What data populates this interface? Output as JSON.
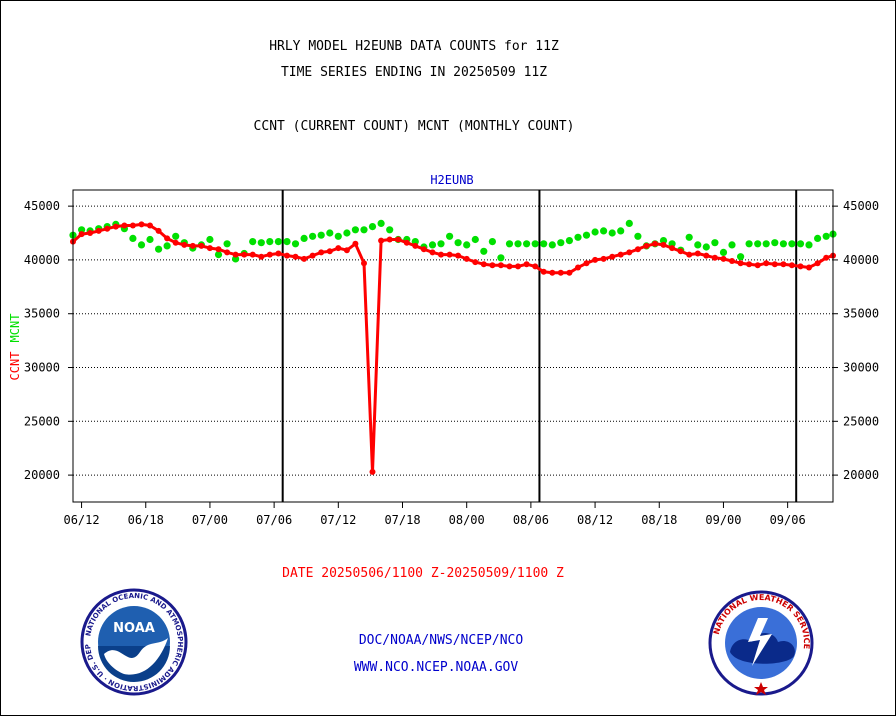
{
  "header": {
    "title_line1": "HRLY MODEL H2EUNB DATA COUNTS for 11Z",
    "title_line2": "TIME SERIES ENDING IN 20250509 11Z",
    "subtitle": "CCNT (CURRENT COUNT) MCNT (MONTHLY COUNT)"
  },
  "footer": {
    "date_range": "DATE 20250506/1100 Z-20250509/1100 Z",
    "org_line": "DOC/NOAA/NWS/NCEP/NCO",
    "url_line": "WWW.NCO.NCEP.NOAA.GOV"
  },
  "logos": {
    "noaa_text": "NOAA",
    "noaa_ring_text": "NATIONAL OCEANIC AND ATMOSPHERIC ADMINISTRATION · U.S. DEPARTMENT OF COMMERCE",
    "nws_ring_text": "NATIONAL WEATHER SERVICE"
  },
  "colors": {
    "ccnt": "#ff0000",
    "mcnt": "#00e000",
    "axis": "#000000",
    "footer_date": "#ff0000",
    "footer_links": "#0000cc",
    "panel_title": "#0000cc"
  },
  "chart_data": {
    "type": "line",
    "title": "H2EUNB",
    "ylabel_ccnt": "CCNT",
    "ylabel_mcnt": "MCNT",
    "ylim": [
      17500,
      46500
    ],
    "xlim": [
      -1,
      87.8
    ],
    "yticks": [
      20000,
      25000,
      30000,
      35000,
      40000,
      45000
    ],
    "xticks": [
      "06/12",
      "06/18",
      "07/00",
      "07/06",
      "07/12",
      "07/18",
      "08/00",
      "08/06",
      "08/12",
      "08/18",
      "09/00",
      "09/06"
    ],
    "xtick_pos": [
      0,
      7.5,
      15,
      22.5,
      30,
      37.5,
      45,
      52.5,
      60,
      67.5,
      75,
      82.5
    ],
    "day_boundaries": [
      23.5,
      53.5,
      83.5
    ],
    "grid": true,
    "series": [
      {
        "name": "CCNT",
        "x": [
          -1,
          0,
          1,
          2,
          3,
          4,
          5,
          6,
          7,
          8,
          9,
          10,
          11,
          12,
          13,
          14,
          15,
          16,
          17,
          18,
          19,
          20,
          21,
          22,
          23,
          24,
          25,
          26,
          27,
          28,
          29,
          30,
          31,
          32,
          33,
          34,
          35,
          36,
          37,
          38,
          39,
          40,
          41,
          42,
          43,
          44,
          45,
          46,
          47,
          48,
          49,
          50,
          51,
          52,
          53,
          54,
          55,
          56,
          57,
          58,
          59,
          60,
          61,
          62,
          63,
          64,
          65,
          66,
          67,
          68,
          69,
          70,
          71,
          72,
          73,
          74,
          75,
          76,
          77,
          78,
          79,
          80,
          81,
          82,
          83,
          84,
          85,
          86,
          87,
          87.8
        ],
        "values": [
          41700,
          42400,
          42500,
          42700,
          42900,
          43100,
          43200,
          43200,
          43300,
          43200,
          42700,
          42000,
          41600,
          41400,
          41300,
          41300,
          41100,
          41000,
          40700,
          40500,
          40500,
          40500,
          40300,
          40500,
          40600,
          40400,
          40300,
          40100,
          40400,
          40700,
          40800,
          41100,
          40900,
          41500,
          39700,
          20300,
          41800,
          41900,
          41900,
          41600,
          41300,
          41000,
          40700,
          40500,
          40500,
          40400,
          40100,
          39800,
          39600,
          39500,
          39500,
          39400,
          39400,
          39600,
          39400,
          38900,
          38800,
          38800,
          38800,
          39300,
          39700,
          40000,
          40100,
          40300,
          40500,
          40700,
          41000,
          41300,
          41500,
          41400,
          41100,
          40800,
          40500,
          40600,
          40400,
          40200,
          40100,
          39900,
          39700,
          39600,
          39500,
          39700,
          39600,
          39600,
          39500,
          39400,
          39300,
          39700,
          40200,
          40400
        ]
      },
      {
        "name": "MCNT",
        "x": [
          -1,
          0,
          1,
          2,
          3,
          4,
          5,
          6,
          7,
          8,
          9,
          10,
          11,
          12,
          13,
          14,
          15,
          16,
          17,
          18,
          19,
          20,
          21,
          22,
          23,
          24,
          25,
          26,
          27,
          28,
          29,
          30,
          31,
          32,
          33,
          34,
          35,
          36,
          37,
          38,
          39,
          40,
          41,
          42,
          43,
          44,
          45,
          46,
          47,
          48,
          49,
          50,
          51,
          52,
          53,
          54,
          55,
          56,
          57,
          58,
          59,
          60,
          61,
          62,
          63,
          64,
          65,
          66,
          67,
          68,
          69,
          70,
          71,
          72,
          73,
          74,
          75,
          76,
          77,
          78,
          79,
          80,
          81,
          82,
          83,
          84,
          85,
          86,
          87,
          87.8
        ],
        "values": [
          42300,
          42800,
          42700,
          42900,
          43100,
          43300,
          42900,
          42000,
          41400,
          41900,
          41000,
          41300,
          42200,
          41600,
          41100,
          41400,
          41900,
          40500,
          41500,
          40100,
          40600,
          41700,
          41600,
          41700,
          41700,
          41700,
          41500,
          42000,
          42200,
          42300,
          42500,
          42200,
          42500,
          42800,
          42800,
          43100,
          43400,
          42800,
          41900,
          41900,
          41700,
          41200,
          41400,
          41500,
          42200,
          41600,
          41400,
          41900,
          40800,
          41700,
          40200,
          41500,
          41500,
          41500,
          41500,
          41500,
          41400,
          41600,
          41800,
          42100,
          42300,
          42600,
          42700,
          42500,
          42700,
          43400,
          42200,
          41300,
          41500,
          41800,
          41500,
          40900,
          42100,
          41400,
          41200,
          41600,
          40700,
          41400,
          40300,
          41500,
          41500,
          41500,
          41600,
          41500,
          41500,
          41500,
          41400,
          42000,
          42200,
          42400
        ]
      }
    ]
  }
}
